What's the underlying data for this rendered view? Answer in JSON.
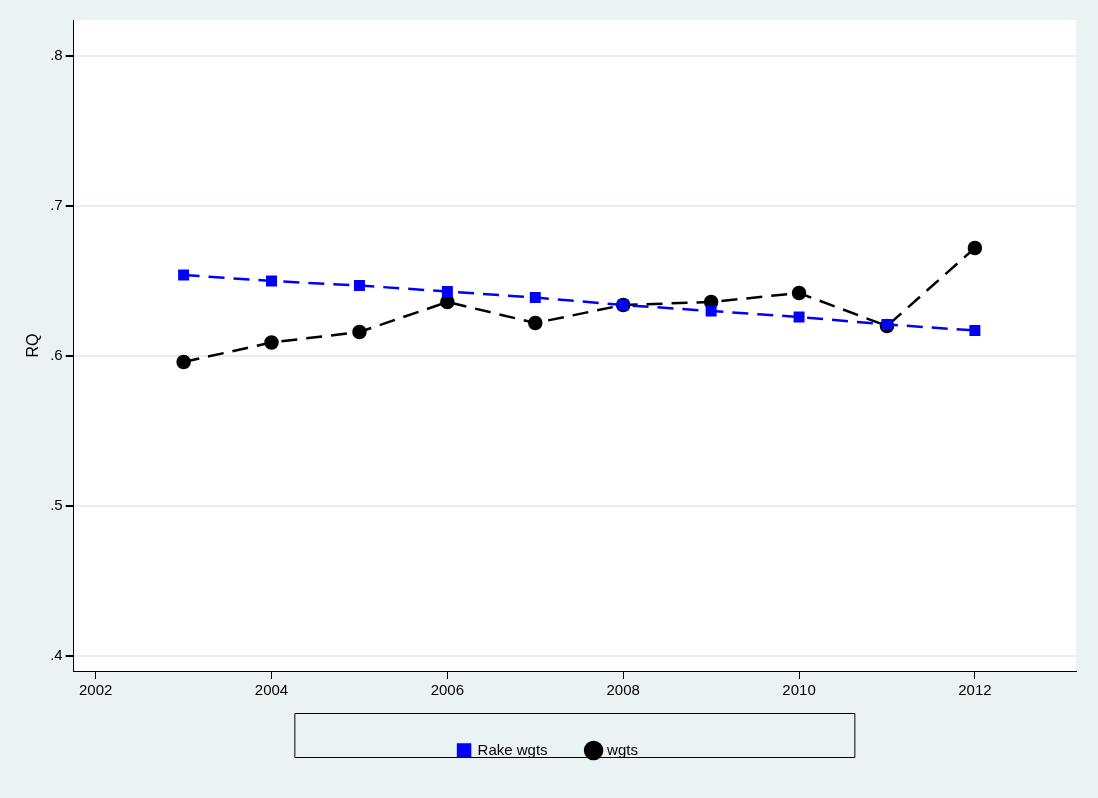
{
  "chart_data": {
    "type": "line",
    "ylabel": "RQ",
    "x": [
      2003,
      2004,
      2005,
      2006,
      2007,
      2008,
      2009,
      2010,
      2011,
      2012
    ],
    "series": [
      {
        "name": "Rake wgts",
        "color": "#0000ff",
        "marker": "square",
        "values": [
          0.654,
          0.65,
          0.647,
          0.643,
          0.639,
          0.634,
          0.63,
          0.626,
          0.621,
          0.617
        ]
      },
      {
        "name": "wgts",
        "color": "#000000",
        "marker": "circle",
        "values": [
          0.596,
          0.609,
          0.616,
          0.636,
          0.622,
          0.634,
          0.636,
          0.642,
          0.62,
          0.672
        ]
      }
    ],
    "xlim": [
      2001.75,
      2013.15
    ],
    "xticks": [
      2002,
      2004,
      2006,
      2008,
      2010,
      2012
    ],
    "ylim": [
      0.39,
      0.824
    ],
    "yticks": [
      {
        "value": 0.4,
        "label": ".4"
      },
      {
        "value": 0.5,
        "label": ".5"
      },
      {
        "value": 0.6,
        "label": ".6"
      },
      {
        "value": 0.7,
        "label": ".7"
      },
      {
        "value": 0.8,
        "label": ".8"
      }
    ],
    "grid": "y",
    "legend": "bottom",
    "line_style": "dashed"
  }
}
